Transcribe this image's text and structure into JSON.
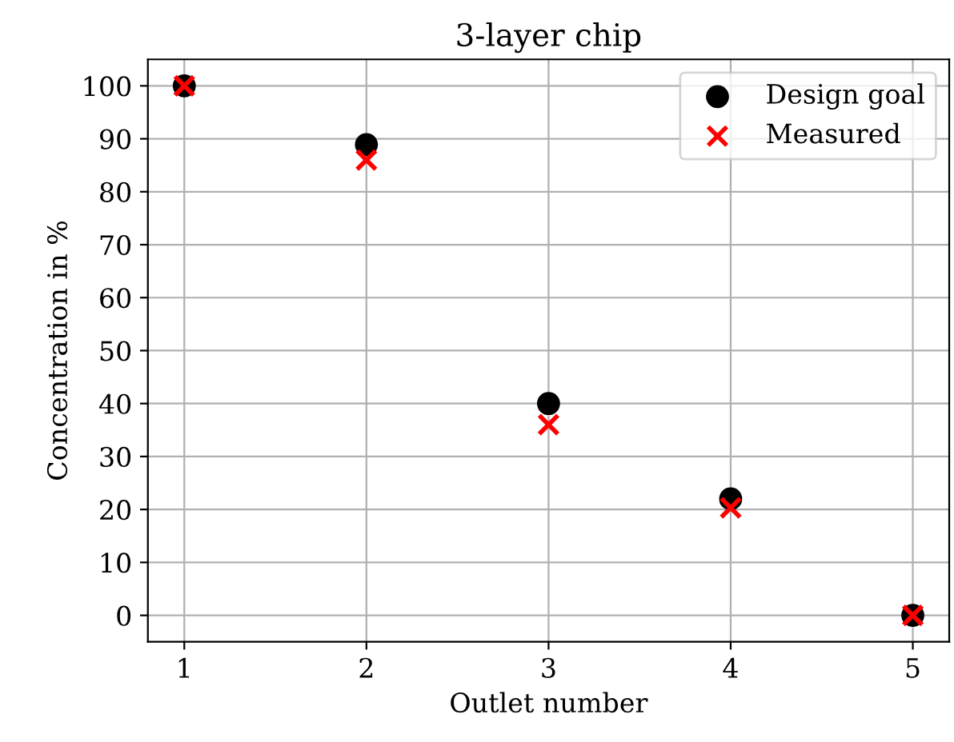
{
  "chart_data": {
    "type": "scatter",
    "title": "3-layer chip",
    "xlabel": "Outlet number",
    "ylabel": "Concentration in %",
    "x": [
      1,
      2,
      3,
      4,
      5
    ],
    "series": [
      {
        "name": "Design goal",
        "color": "#000000",
        "marker": "circle",
        "values": [
          100,
          88.9,
          40,
          22,
          0
        ]
      },
      {
        "name": "Measured",
        "color": "#ff0000",
        "marker": "cross",
        "values": [
          100,
          86,
          36,
          20.3,
          0
        ]
      }
    ],
    "xlim": [
      0.8,
      5.2
    ],
    "xticks": [
      1,
      2,
      3,
      4,
      5
    ],
    "ylim": [
      -5,
      105
    ],
    "yticks": [
      0,
      10,
      20,
      30,
      40,
      50,
      60,
      70,
      80,
      90,
      100
    ],
    "grid": true,
    "legend": "top right"
  }
}
